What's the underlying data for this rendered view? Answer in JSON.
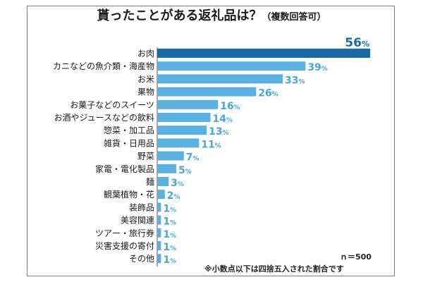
{
  "header": {
    "title": "貰ったことがある返礼品は？",
    "subtitle": "（複数回答可）"
  },
  "footer": {
    "sample_size": "ｎ＝500",
    "rounding_note": "※小数点以下は四捨五入された割合です"
  },
  "colors": {
    "highlight_bar": "#1a6aaa",
    "bar": "#5ab0e0",
    "highlight_label": "#1a6aaa",
    "label": "#4aa6da",
    "axis": "#555555"
  },
  "chart_data": {
    "type": "bar",
    "orientation": "horizontal",
    "title": "貰ったことがある返礼品は？（複数回答可）",
    "unit": "%",
    "categories": [
      "お肉",
      "カニなどの魚介類・海産物",
      "お米",
      "果物",
      "お菓子などのスイーツ",
      "お酒やジュースなどの飲料",
      "惣菜・加工品",
      "雑貨・日用品",
      "野菜",
      "家電・電化製品",
      "麺",
      "観葉植物・花",
      "装飾品",
      "美容関連",
      "ツアー・旅行券",
      "災害支援の寄付",
      "その他"
    ],
    "values": [
      56,
      39,
      33,
      26,
      16,
      14,
      13,
      11,
      7,
      5,
      3,
      2,
      1,
      1,
      1,
      1,
      1
    ],
    "xlim": [
      0,
      56
    ],
    "grid": false,
    "legend": "none"
  }
}
